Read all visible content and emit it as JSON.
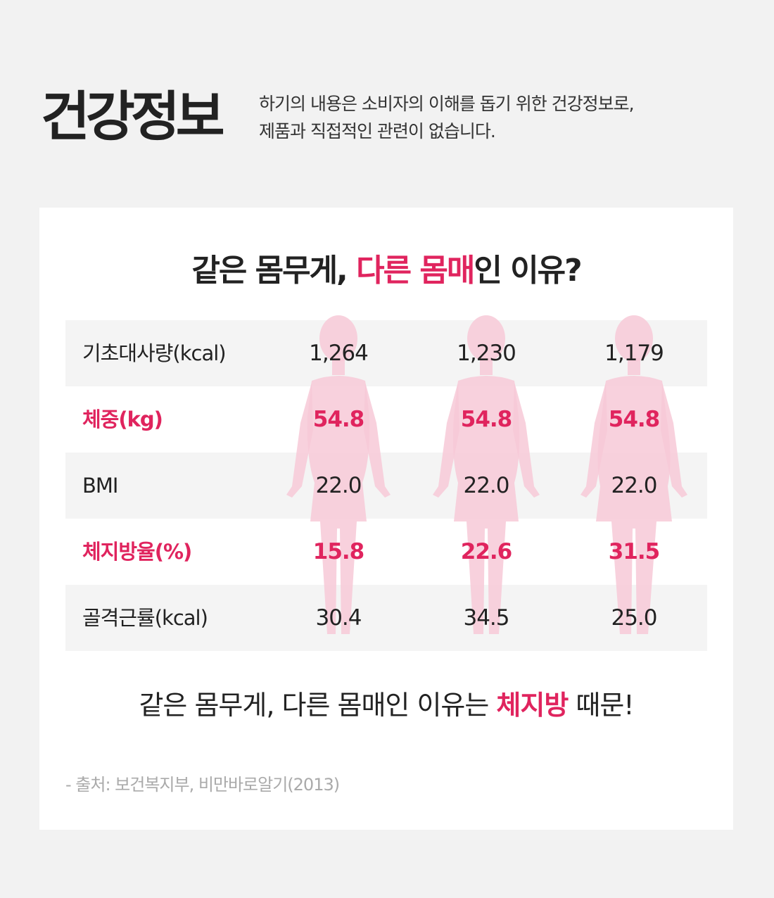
{
  "header": {
    "title": "건강정보",
    "desc_line1": "하기의 내용은 소비자의 이해를 돕기 위한 건강정보로,",
    "desc_line2": "제품과 직접적인 관련이 없습니다."
  },
  "card": {
    "headline_part1": "같은 몸무게, ",
    "headline_highlight": "다른 몸매",
    "headline_part2": "인 이유?",
    "table": {
      "rows": [
        {
          "label": "기초대사량(kcal)",
          "values": [
            "1,264",
            "1,230",
            "1,179"
          ]
        },
        {
          "label": "체중(kg)",
          "values": [
            "54.8",
            "54.8",
            "54.8"
          ]
        },
        {
          "label": "BMI",
          "values": [
            "22.0",
            "22.0",
            "22.0"
          ]
        },
        {
          "label": "체지방율(%)",
          "values": [
            "15.8",
            "22.6",
            "31.5"
          ]
        },
        {
          "label": "골격근률(kcal)",
          "values": [
            "30.4",
            "34.5",
            "25.0"
          ]
        }
      ]
    },
    "conclusion_part1": "같은 몸무게, 다른 몸매인 이유는 ",
    "conclusion_highlight": "체지방",
    "conclusion_part2": " 때문!",
    "source": "- 출처: 보건복지부, 비만바로알기(2013)"
  },
  "colors": {
    "accent": "#e0245e",
    "silhouette": "#f7c9d7",
    "background": "#f2f2f2",
    "row_shade": "#f4f4f4"
  }
}
